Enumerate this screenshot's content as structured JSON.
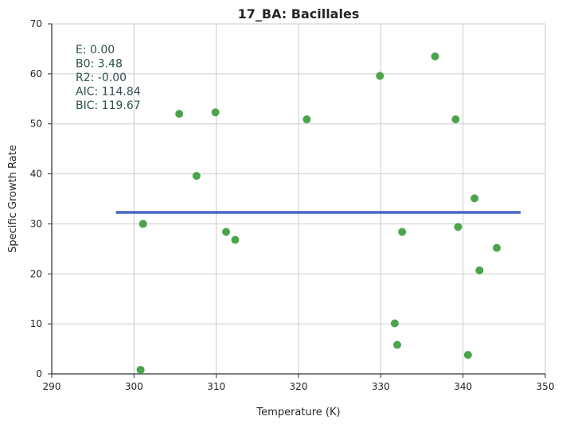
{
  "chart_data": {
    "type": "scatter",
    "title": "17_BA: Bacillales",
    "xlabel": "Temperature (K)",
    "ylabel": "Specific Growth Rate",
    "xlim": [
      290,
      350
    ],
    "ylim": [
      0,
      70
    ],
    "xticks": [
      290,
      300,
      310,
      320,
      330,
      340,
      350
    ],
    "yticks": [
      0,
      10,
      20,
      30,
      40,
      50,
      60,
      70
    ],
    "grid": true,
    "points": [
      {
        "x": 300.8,
        "y": 0.8
      },
      {
        "x": 301.1,
        "y": 30.0
      },
      {
        "x": 305.5,
        "y": 52.0
      },
      {
        "x": 307.6,
        "y": 39.6
      },
      {
        "x": 309.9,
        "y": 52.3
      },
      {
        "x": 311.2,
        "y": 28.4
      },
      {
        "x": 312.3,
        "y": 26.8
      },
      {
        "x": 321.0,
        "y": 50.9
      },
      {
        "x": 329.9,
        "y": 59.6
      },
      {
        "x": 331.7,
        "y": 10.1
      },
      {
        "x": 332.0,
        "y": 5.8
      },
      {
        "x": 332.6,
        "y": 28.4
      },
      {
        "x": 336.6,
        "y": 63.5
      },
      {
        "x": 339.1,
        "y": 50.9
      },
      {
        "x": 339.4,
        "y": 29.4
      },
      {
        "x": 340.6,
        "y": 3.8
      },
      {
        "x": 341.4,
        "y": 35.1
      },
      {
        "x": 342.0,
        "y": 20.7
      },
      {
        "x": 344.1,
        "y": 25.2
      }
    ],
    "fit_line": {
      "x": [
        297.8,
        347.0
      ],
      "y": [
        32.3,
        32.3
      ]
    },
    "point_color": "#4aa54a",
    "line_color": "#4367c8",
    "stats": [
      "E:  0.00",
      "B0:  3.48",
      "R2:  -0.00",
      "AIC: 114.84",
      "BIC: 119.67"
    ],
    "stats_color": "#2f4f4f"
  }
}
